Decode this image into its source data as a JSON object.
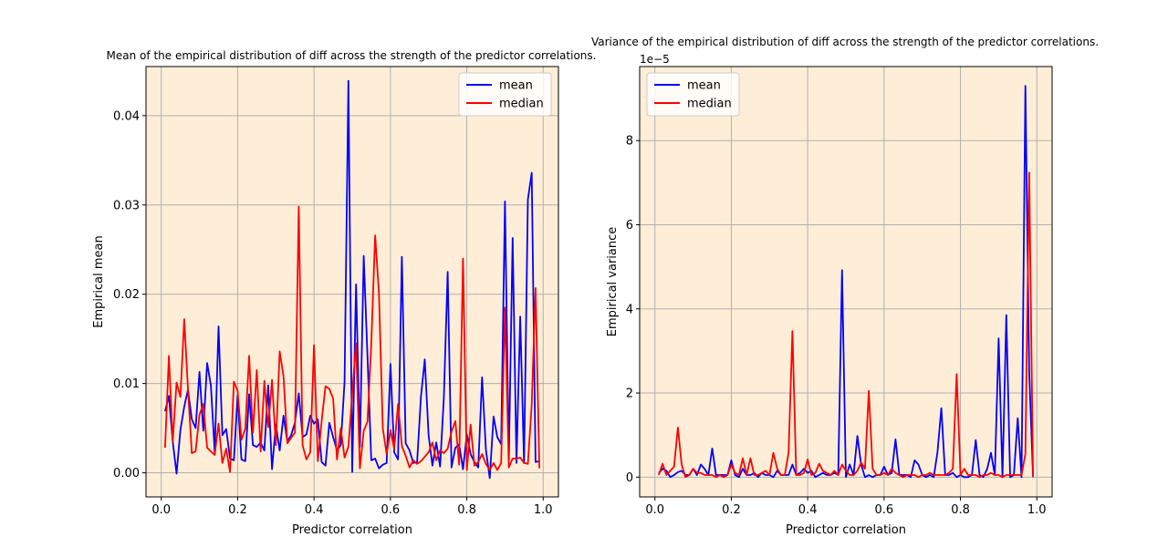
{
  "chart_data": [
    {
      "type": "line",
      "title": "Mean of the empirical distribution of diff across the strength of the predictor correlations.",
      "xlabel": "Predictor correlation",
      "ylabel": "Empirical mean",
      "offset_text": "",
      "xlim": [
        -0.04,
        1.04
      ],
      "ylim": [
        -0.0027,
        0.0455
      ],
      "xticks": [
        0.0,
        0.2,
        0.4,
        0.6,
        0.8,
        1.0
      ],
      "xtick_labels": [
        "0.0",
        "0.2",
        "0.4",
        "0.6",
        "0.8",
        "1.0"
      ],
      "yticks": [
        0.0,
        0.01,
        0.02,
        0.03,
        0.04
      ],
      "ytick_labels": [
        "0.00",
        "0.01",
        "0.02",
        "0.03",
        "0.04"
      ],
      "grid": true,
      "legend_position": "top-right",
      "background": "#feeed7",
      "series": [
        {
          "name": "mean",
          "color": "#0000ff",
          "x": [
            0.01,
            0.02,
            0.03,
            0.04,
            0.05,
            0.06,
            0.07,
            0.08,
            0.09,
            0.1,
            0.11,
            0.12,
            0.13,
            0.14,
            0.15,
            0.16,
            0.17,
            0.18,
            0.19,
            0.2,
            0.21,
            0.22,
            0.23,
            0.24,
            0.25,
            0.26,
            0.27,
            0.28,
            0.29,
            0.3,
            0.31,
            0.32,
            0.33,
            0.34,
            0.35,
            0.36,
            0.37,
            0.38,
            0.39,
            0.4,
            0.41,
            0.42,
            0.43,
            0.44,
            0.45,
            0.46,
            0.47,
            0.48,
            0.49,
            0.5,
            0.51,
            0.52,
            0.53,
            0.54,
            0.55,
            0.56,
            0.57,
            0.58,
            0.59,
            0.6,
            0.61,
            0.62,
            0.63,
            0.64,
            0.65,
            0.66,
            0.67,
            0.68,
            0.69,
            0.7,
            0.71,
            0.72,
            0.73,
            0.74,
            0.75,
            0.76,
            0.77,
            0.78,
            0.79,
            0.8,
            0.81,
            0.82,
            0.83,
            0.84,
            0.85,
            0.86,
            0.87,
            0.88,
            0.89,
            0.9,
            0.91,
            0.92,
            0.93,
            0.94,
            0.95,
            0.96,
            0.97,
            0.98,
            0.99
          ],
          "y": [
            0.0069,
            0.0086,
            0.0035,
            -0.0001,
            0.0048,
            0.0074,
            0.0093,
            0.006,
            0.005,
            0.0113,
            0.0047,
            0.0123,
            0.0098,
            0.0023,
            0.0164,
            0.0042,
            0.0049,
            0.0016,
            0.0014,
            0.0087,
            0.0015,
            0.0013,
            0.0088,
            0.0031,
            0.0029,
            0.0034,
            0.0025,
            0.0098,
            0.0004,
            0.0054,
            0.0025,
            0.0064,
            0.0035,
            0.0042,
            0.0056,
            0.0089,
            0.004,
            0.0043,
            0.0064,
            0.0055,
            0.006,
            0.0012,
            0.0008,
            0.0056,
            0.004,
            0.0025,
            0.0031,
            0.0102,
            0.0439,
            0.0001,
            0.0211,
            0.0029,
            0.0243,
            0.0131,
            0.0014,
            0.0016,
            0.0005,
            0.0009,
            0.0011,
            0.0122,
            0.0023,
            0.0015,
            0.0242,
            0.0033,
            0.0025,
            0.0011,
            0.0012,
            0.0085,
            0.0127,
            0.0042,
            0.0008,
            0.0034,
            0.0007,
            0.0084,
            0.0225,
            0.0006,
            0.0028,
            0.0032,
            0.0004,
            0.0043,
            0.0021,
            0.0012,
            0.0006,
            0.0107,
            0.0026,
            -0.0006,
            0.0063,
            0.004,
            0.0032,
            0.0304,
            0.0014,
            0.0263,
            0.0011,
            0.0175,
            0.0011,
            0.0306,
            0.0336,
            0.0012,
            0.0013
          ]
        },
        {
          "name": "median",
          "color": "#ff0000",
          "x": [
            0.01,
            0.02,
            0.03,
            0.04,
            0.05,
            0.06,
            0.07,
            0.08,
            0.09,
            0.1,
            0.11,
            0.12,
            0.13,
            0.14,
            0.15,
            0.16,
            0.17,
            0.18,
            0.19,
            0.2,
            0.21,
            0.22,
            0.23,
            0.24,
            0.25,
            0.26,
            0.27,
            0.28,
            0.29,
            0.3,
            0.31,
            0.32,
            0.33,
            0.34,
            0.35,
            0.36,
            0.37,
            0.38,
            0.39,
            0.4,
            0.41,
            0.42,
            0.43,
            0.44,
            0.45,
            0.46,
            0.47,
            0.48,
            0.49,
            0.5,
            0.51,
            0.52,
            0.53,
            0.54,
            0.55,
            0.56,
            0.57,
            0.58,
            0.59,
            0.6,
            0.61,
            0.62,
            0.63,
            0.64,
            0.65,
            0.66,
            0.67,
            0.68,
            0.69,
            0.7,
            0.71,
            0.72,
            0.73,
            0.74,
            0.75,
            0.76,
            0.77,
            0.78,
            0.79,
            0.8,
            0.81,
            0.82,
            0.83,
            0.84,
            0.85,
            0.86,
            0.87,
            0.88,
            0.89,
            0.9,
            0.91,
            0.92,
            0.93,
            0.94,
            0.95,
            0.96,
            0.97,
            0.98,
            0.99
          ],
          "y": [
            0.0028,
            0.0131,
            0.0035,
            0.0101,
            0.0085,
            0.0172,
            0.0094,
            0.0022,
            0.0024,
            0.0065,
            0.0077,
            0.0028,
            0.0024,
            0.002,
            0.0055,
            0.0011,
            0.0027,
            0.0001,
            0.0102,
            0.0092,
            0.0037,
            0.0049,
            0.0131,
            0.0045,
            0.0115,
            0.0024,
            0.0103,
            0.0051,
            0.0104,
            0.0031,
            0.0136,
            0.0108,
            0.0033,
            0.0039,
            0.0045,
            0.0298,
            0.0031,
            0.0015,
            0.0023,
            0.0143,
            0.0013,
            0.0058,
            0.0097,
            0.0094,
            0.0083,
            0.0015,
            0.005,
            0.0017,
            0.0029,
            0.0089,
            0.0145,
            0.0005,
            0.0047,
            0.0057,
            0.0145,
            0.0266,
            0.0201,
            0.005,
            0.0021,
            0.0048,
            0.0027,
            0.0077,
            0.003,
            0.0019,
            0.0006,
            0.0014,
            0.001,
            0.0013,
            0.0018,
            0.0023,
            0.0034,
            0.0014,
            0.0025,
            0.0022,
            0.0027,
            0.0046,
            0.0058,
            0.0009,
            0.024,
            0.0003,
            0.0054,
            0.0008,
            0.0012,
            0.0021,
            0.001,
            0.0003,
            0.0011,
            0.0003,
            0.0011,
            0.0185,
            0.0006,
            0.0016,
            0.0016,
            0.0017,
            0.0011,
            0.001,
            0.0076,
            0.0207,
            0.0005
          ]
        }
      ]
    },
    {
      "type": "line",
      "title": "Variance of the empirical distribution of diff across the strength of the predictor correlations.",
      "xlabel": "Predictor correlation",
      "ylabel": "Empirical variance",
      "offset_text": "1e−5",
      "xlim": [
        -0.04,
        1.04
      ],
      "ylim": [
        -0.47,
        9.76
      ],
      "xticks": [
        0.0,
        0.2,
        0.4,
        0.6,
        0.8,
        1.0
      ],
      "xtick_labels": [
        "0.0",
        "0.2",
        "0.4",
        "0.6",
        "0.8",
        "1.0"
      ],
      "yticks": [
        0,
        2,
        4,
        6,
        8
      ],
      "ytick_labels": [
        "0",
        "2",
        "4",
        "6",
        "8"
      ],
      "grid": true,
      "legend_position": "top-left",
      "background": "#feeed7",
      "series": [
        {
          "name": "mean",
          "color": "#0000ff",
          "x": [
            0.01,
            0.02,
            0.03,
            0.04,
            0.05,
            0.06,
            0.07,
            0.08,
            0.09,
            0.1,
            0.11,
            0.12,
            0.13,
            0.14,
            0.15,
            0.16,
            0.17,
            0.18,
            0.19,
            0.2,
            0.21,
            0.22,
            0.23,
            0.24,
            0.25,
            0.26,
            0.27,
            0.28,
            0.29,
            0.3,
            0.31,
            0.32,
            0.33,
            0.34,
            0.35,
            0.36,
            0.37,
            0.38,
            0.39,
            0.4,
            0.41,
            0.42,
            0.43,
            0.44,
            0.45,
            0.46,
            0.47,
            0.48,
            0.49,
            0.5,
            0.51,
            0.52,
            0.53,
            0.54,
            0.55,
            0.56,
            0.57,
            0.58,
            0.59,
            0.6,
            0.61,
            0.62,
            0.63,
            0.64,
            0.65,
            0.66,
            0.67,
            0.68,
            0.69,
            0.7,
            0.71,
            0.72,
            0.73,
            0.74,
            0.75,
            0.76,
            0.77,
            0.78,
            0.79,
            0.8,
            0.81,
            0.82,
            0.83,
            0.84,
            0.85,
            0.86,
            0.87,
            0.88,
            0.89,
            0.9,
            0.91,
            0.92,
            0.93,
            0.94,
            0.95,
            0.96,
            0.97,
            0.98,
            0.99
          ],
          "y": [
            0.1,
            0.2,
            0.15,
            0.0,
            0.05,
            0.12,
            0.15,
            0.05,
            0.05,
            0.2,
            0.05,
            0.3,
            0.2,
            0.05,
            0.68,
            0.05,
            0.05,
            0.05,
            0.05,
            0.4,
            0.05,
            0.0,
            0.2,
            0.05,
            0.05,
            0.1,
            0.0,
            0.1,
            0.05,
            0.05,
            0.0,
            0.15,
            0.05,
            0.05,
            0.05,
            0.3,
            0.05,
            0.1,
            0.2,
            0.1,
            0.15,
            0.0,
            0.05,
            0.1,
            0.05,
            0.05,
            0.1,
            0.05,
            4.92,
            0.0,
            0.3,
            0.05,
            0.98,
            0.3,
            0.0,
            0.05,
            0.0,
            0.05,
            0.05,
            0.25,
            0.05,
            0.1,
            0.9,
            0.05,
            0.05,
            0.05,
            0.0,
            0.4,
            0.3,
            0.05,
            0.0,
            0.05,
            0.0,
            0.6,
            1.64,
            0.05,
            0.05,
            0.1,
            0.0,
            0.05,
            0.0,
            0.0,
            0.05,
            0.88,
            0.05,
            0.0,
            0.2,
            0.58,
            0.05,
            3.3,
            0.0,
            3.85,
            0.0,
            0.05,
            1.4,
            0.0,
            9.3,
            2.5,
            0.0
          ]
        },
        {
          "name": "median",
          "color": "#ff0000",
          "x": [
            0.01,
            0.02,
            0.03,
            0.04,
            0.05,
            0.06,
            0.07,
            0.08,
            0.09,
            0.1,
            0.11,
            0.12,
            0.13,
            0.14,
            0.15,
            0.16,
            0.17,
            0.18,
            0.19,
            0.2,
            0.21,
            0.22,
            0.23,
            0.24,
            0.25,
            0.26,
            0.27,
            0.28,
            0.29,
            0.3,
            0.31,
            0.32,
            0.33,
            0.34,
            0.35,
            0.36,
            0.37,
            0.38,
            0.39,
            0.4,
            0.41,
            0.42,
            0.43,
            0.44,
            0.45,
            0.46,
            0.47,
            0.48,
            0.49,
            0.5,
            0.51,
            0.52,
            0.53,
            0.54,
            0.55,
            0.56,
            0.57,
            0.58,
            0.59,
            0.6,
            0.61,
            0.62,
            0.63,
            0.64,
            0.65,
            0.66,
            0.67,
            0.68,
            0.69,
            0.7,
            0.71,
            0.72,
            0.73,
            0.74,
            0.75,
            0.76,
            0.77,
            0.78,
            0.79,
            0.8,
            0.81,
            0.82,
            0.83,
            0.84,
            0.85,
            0.86,
            0.87,
            0.88,
            0.89,
            0.9,
            0.91,
            0.92,
            0.93,
            0.94,
            0.95,
            0.96,
            0.97,
            0.98,
            0.99
          ],
          "y": [
            0.05,
            0.32,
            0.05,
            0.15,
            0.25,
            1.18,
            0.3,
            0.0,
            0.05,
            0.2,
            0.1,
            0.1,
            0.05,
            0.05,
            0.05,
            0.0,
            0.05,
            0.0,
            0.05,
            0.3,
            0.1,
            0.05,
            0.45,
            0.05,
            0.45,
            0.05,
            0.05,
            0.1,
            0.15,
            0.05,
            0.58,
            0.2,
            0.05,
            0.05,
            0.58,
            3.47,
            0.05,
            0.05,
            0.1,
            0.42,
            0.05,
            0.1,
            0.32,
            0.15,
            0.1,
            0.05,
            0.15,
            0.05,
            0.3,
            0.15,
            0.05,
            0.05,
            0.15,
            0.35,
            0.2,
            2.05,
            0.2,
            0.05,
            0.05,
            0.1,
            0.05,
            0.2,
            0.1,
            0.05,
            0.0,
            0.05,
            0.05,
            0.05,
            0.0,
            0.05,
            0.05,
            0.1,
            0.05,
            0.05,
            0.05,
            0.05,
            0.1,
            0.2,
            2.45,
            0.05,
            0.2,
            0.05,
            0.05,
            0.05,
            0.0,
            0.05,
            0.05,
            0.1,
            0.05,
            0.05,
            0.0,
            0.05,
            0.05,
            0.05,
            0.05,
            0.05,
            0.55,
            7.24,
            0.0
          ]
        }
      ]
    }
  ]
}
